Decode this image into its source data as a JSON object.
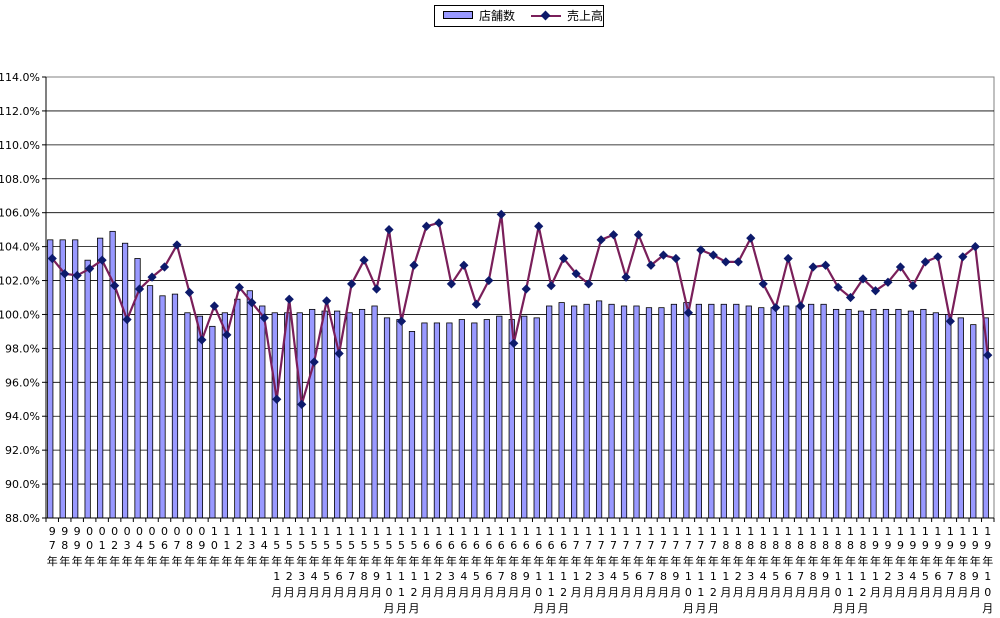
{
  "chart_data": {
    "type": "bar+line",
    "title": "",
    "xlabel": "",
    "ylabel": "",
    "ylim": [
      88.0,
      114.0
    ],
    "ytick_step": 2.0,
    "yticks": [
      "88.0%",
      "90.0%",
      "92.0%",
      "94.0%",
      "96.0%",
      "98.0%",
      "100.0%",
      "102.0%",
      "104.0%",
      "106.0%",
      "108.0%",
      "110.0%",
      "112.0%",
      "114.0%"
    ],
    "grid": true,
    "legend_position": "top-center",
    "colors": {
      "bar": "#9999ff",
      "bar_edge": "#000000",
      "line": "#7a1f5a",
      "marker": "#0d1a6b"
    },
    "categories": [
      "97年",
      "98年",
      "99年",
      "00年",
      "01年",
      "02年",
      "03年",
      "04年",
      "05年",
      "06年",
      "07年",
      "08年",
      "09年",
      "10年",
      "11年",
      "12年",
      "13年",
      "14年",
      "15年1月",
      "15年2月",
      "15年3月",
      "15年4月",
      "15年5月",
      "15年6月",
      "15年7月",
      "15年8月",
      "15年9月",
      "15年10月",
      "15年11月",
      "15年12月",
      "16年1月",
      "16年2月",
      "16年3月",
      "16年4月",
      "16年5月",
      "16年6月",
      "16年7月",
      "16年8月",
      "16年9月",
      "16年10月",
      "16年11月",
      "16年12月",
      "17年1月",
      "17年2月",
      "17年3月",
      "17年4月",
      "17年5月",
      "17年6月",
      "17年7月",
      "17年8月",
      "17年9月",
      "17年10月",
      "17年11月",
      "17年12月",
      "18年1月",
      "18年2月",
      "18年3月",
      "18年4月",
      "18年5月",
      "18年6月",
      "18年7月",
      "18年8月",
      "18年9月",
      "18年10月",
      "18年11月",
      "18年12月",
      "19年1月",
      "19年2月",
      "19年3月",
      "19年4月",
      "19年5月",
      "19年6月",
      "19年7月",
      "19年8月",
      "19年9月",
      "19年10月"
    ],
    "tick_label_rows": [
      [
        "9",
        "9",
        "9",
        "0",
        "0",
        "0",
        "0",
        "0",
        "0",
        "0",
        "0",
        "0",
        "0",
        "1",
        "1",
        "1",
        "1",
        "1",
        "1",
        "1",
        "1",
        "1",
        "1",
        "1",
        "1",
        "1",
        "1",
        "1",
        "1",
        "1",
        "1",
        "1",
        "1",
        "1",
        "1",
        "1",
        "1",
        "1",
        "1",
        "1",
        "1",
        "1",
        "1",
        "1",
        "1",
        "1",
        "1",
        "1",
        "1",
        "1",
        "1",
        "1",
        "1",
        "1",
        "1",
        "1",
        "1",
        "1",
        "1",
        "1",
        "1",
        "1",
        "1",
        "1",
        "1",
        "1",
        "1",
        "1",
        "1",
        "1",
        "1",
        "1",
        "1",
        "1",
        "1",
        "1"
      ],
      [
        "7",
        "8",
        "9",
        "0",
        "1",
        "2",
        "3",
        "4",
        "5",
        "6",
        "7",
        "8",
        "9",
        "0",
        "1",
        "2",
        "3",
        "4",
        "5",
        "5",
        "5",
        "5",
        "5",
        "5",
        "5",
        "5",
        "5",
        "5",
        "5",
        "5",
        "6",
        "6",
        "6",
        "6",
        "6",
        "6",
        "6",
        "6",
        "6",
        "6",
        "6",
        "6",
        "7",
        "7",
        "7",
        "7",
        "7",
        "7",
        "7",
        "7",
        "7",
        "7",
        "7",
        "7",
        "8",
        "8",
        "8",
        "8",
        "8",
        "8",
        "8",
        "8",
        "8",
        "8",
        "8",
        "8",
        "9",
        "9",
        "9",
        "9",
        "9",
        "9",
        "9",
        "9",
        "9",
        "9"
      ],
      [
        "年",
        "年",
        "年",
        "年",
        "年",
        "年",
        "年",
        "年",
        "年",
        "年",
        "年",
        "年",
        "年",
        "年",
        "年",
        "年",
        "年",
        "年",
        "年",
        "年",
        "年",
        "年",
        "年",
        "年",
        "年",
        "年",
        "年",
        "年",
        "年",
        "年",
        "年",
        "年",
        "年",
        "年",
        "年",
        "年",
        "年",
        "年",
        "年",
        "年",
        "年",
        "年",
        "年",
        "年",
        "年",
        "年",
        "年",
        "年",
        "年",
        "年",
        "年",
        "年",
        "年",
        "年",
        "年",
        "年",
        "年",
        "年",
        "年",
        "年",
        "年",
        "年",
        "年",
        "年",
        "年",
        "年",
        "年",
        "年",
        "年",
        "年",
        "年",
        "年",
        "年",
        "年",
        "年",
        "年"
      ],
      [
        "",
        "",
        "",
        "",
        "",
        "",
        "",
        "",
        "",
        "",
        "",
        "",
        "",
        "",
        "",
        "",
        "",
        "",
        "1",
        "2",
        "3",
        "4",
        "5",
        "6",
        "7",
        "8",
        "9",
        "1",
        "1",
        "1",
        "1",
        "2",
        "3",
        "4",
        "5",
        "6",
        "7",
        "8",
        "9",
        "1",
        "1",
        "1",
        "1",
        "2",
        "3",
        "4",
        "5",
        "6",
        "7",
        "8",
        "9",
        "1",
        "1",
        "1",
        "1",
        "2",
        "3",
        "4",
        "5",
        "6",
        "7",
        "8",
        "9",
        "1",
        "1",
        "1",
        "1",
        "2",
        "3",
        "4",
        "5",
        "6",
        "7",
        "8",
        "9",
        "1"
      ],
      [
        "",
        "",
        "",
        "",
        "",
        "",
        "",
        "",
        "",
        "",
        "",
        "",
        "",
        "",
        "",
        "",
        "",
        "",
        "月",
        "月",
        "月",
        "月",
        "月",
        "月",
        "月",
        "月",
        "月",
        "0",
        "1",
        "2",
        "月",
        "月",
        "月",
        "月",
        "月",
        "月",
        "月",
        "月",
        "月",
        "0",
        "1",
        "2",
        "月",
        "月",
        "月",
        "月",
        "月",
        "月",
        "月",
        "月",
        "月",
        "0",
        "1",
        "2",
        "月",
        "月",
        "月",
        "月",
        "月",
        "月",
        "月",
        "月",
        "月",
        "0",
        "1",
        "2",
        "月",
        "月",
        "月",
        "月",
        "月",
        "月",
        "月",
        "月",
        "月",
        "0"
      ],
      [
        "",
        "",
        "",
        "",
        "",
        "",
        "",
        "",
        "",
        "",
        "",
        "",
        "",
        "",
        "",
        "",
        "",
        "",
        "",
        "",
        "",
        "",
        "",
        "",
        "",
        "",
        "",
        "月",
        "月",
        "月",
        "",
        "",
        "",
        "",
        "",
        "",
        "",
        "",
        "",
        "月",
        "月",
        "月",
        "",
        "",
        "",
        "",
        "",
        "",
        "",
        "",
        "",
        "月",
        "月",
        "月",
        "",
        "",
        "",
        "",
        "",
        "",
        "",
        "",
        "",
        "月",
        "月",
        "月",
        "",
        "",
        "",
        "",
        "",
        "",
        "",
        "",
        "",
        "月"
      ]
    ],
    "series": [
      {
        "name": "店舗数",
        "kind": "bar",
        "values": [
          104.4,
          104.4,
          104.4,
          103.2,
          104.5,
          104.9,
          104.2,
          103.3,
          101.7,
          101.1,
          101.2,
          100.1,
          99.9,
          99.3,
          100.1,
          100.9,
          101.4,
          100.5,
          100.1,
          100.1,
          100.1,
          100.3,
          100.2,
          100.2,
          100.1,
          100.3,
          100.5,
          99.8,
          99.7,
          99.0,
          99.5,
          99.5,
          99.5,
          99.7,
          99.5,
          99.7,
          99.9,
          99.7,
          99.9,
          99.8,
          100.5,
          100.7,
          100.5,
          100.6,
          100.8,
          100.6,
          100.5,
          100.5,
          100.4,
          100.4,
          100.6,
          100.7,
          100.6,
          100.6,
          100.6,
          100.6,
          100.5,
          100.4,
          100.4,
          100.5,
          100.5,
          100.6,
          100.6,
          100.3,
          100.3,
          100.2,
          100.3,
          100.3,
          100.3,
          100.2,
          100.3,
          100.1,
          100.0,
          99.8,
          99.4,
          99.8
        ]
      },
      {
        "name": "売上高",
        "kind": "line",
        "values": [
          103.3,
          102.4,
          102.3,
          102.7,
          103.2,
          101.7,
          99.7,
          101.5,
          102.2,
          102.8,
          104.1,
          101.3,
          98.5,
          100.5,
          98.8,
          101.6,
          100.7,
          99.8,
          95.0,
          100.9,
          94.7,
          97.2,
          100.8,
          97.7,
          101.8,
          103.2,
          101.5,
          105.0,
          99.6,
          102.9,
          105.2,
          105.4,
          101.8,
          102.9,
          100.6,
          102.0,
          105.9,
          98.3,
          101.5,
          105.2,
          101.7,
          103.3,
          102.4,
          101.8,
          104.4,
          104.7,
          102.2,
          104.7,
          102.9,
          103.5,
          103.3,
          100.1,
          103.8,
          103.5,
          103.1,
          103.1,
          104.5,
          101.8,
          100.4,
          103.3,
          100.5,
          102.8,
          102.9,
          101.6,
          101.0,
          102.1,
          101.4,
          101.9,
          102.8,
          101.7,
          103.1,
          103.4,
          99.6,
          103.4,
          104.0,
          97.6
        ]
      }
    ]
  }
}
